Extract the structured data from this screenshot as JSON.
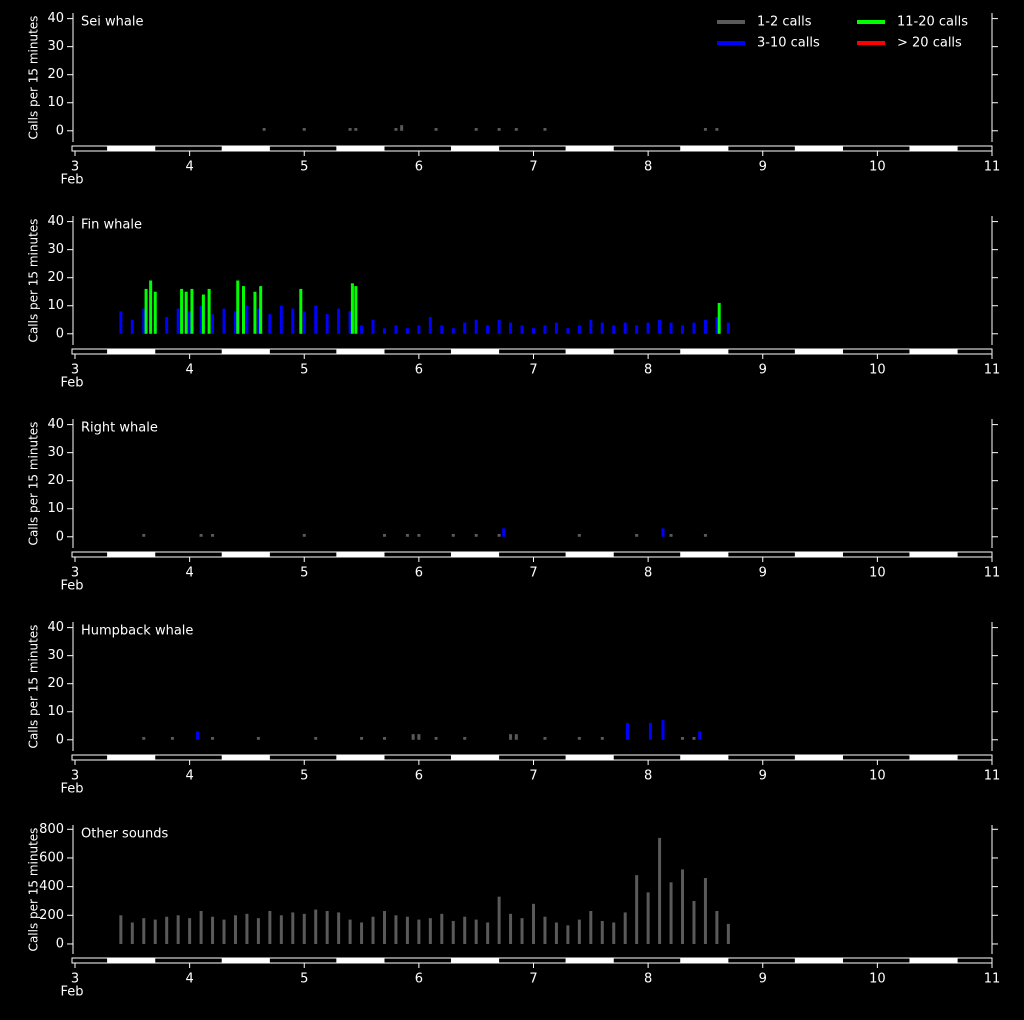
{
  "chart_data": [
    {
      "type": "bar",
      "title": "Sei whale",
      "y_label": "Calls per 15 minutes",
      "x_sublabel": "Feb",
      "xlim": [
        3,
        11
      ],
      "xticks": [
        3,
        4,
        5,
        6,
        7,
        8,
        9,
        10,
        11
      ],
      "ylim": [
        -4,
        42
      ],
      "yticks": [
        0,
        10,
        20,
        30,
        40
      ],
      "legend": "top-right",
      "series": [
        {
          "name": "1-2 calls",
          "color": "#5a5a5a",
          "x": [
            4.65,
            5.0,
            5.4,
            5.45,
            5.8,
            5.85,
            6.15,
            6.5,
            6.7,
            6.85,
            7.1,
            8.5,
            8.6
          ],
          "values": [
            1,
            1,
            1,
            1,
            1,
            2,
            1,
            1,
            1,
            1,
            1,
            1,
            1
          ]
        },
        {
          "name": "3-10 calls",
          "color": "#0000ff",
          "x": [],
          "values": []
        },
        {
          "name": "11-20 calls",
          "color": "#00ff00",
          "x": [],
          "values": []
        },
        {
          "name": "> 20 calls",
          "color": "#ff0000",
          "x": [],
          "values": []
        }
      ]
    },
    {
      "type": "bar",
      "title": "Fin whale",
      "y_label": "Calls per 15 minutes",
      "x_sublabel": "Feb",
      "xlim": [
        3,
        11
      ],
      "xticks": [
        3,
        4,
        5,
        6,
        7,
        8,
        9,
        10,
        11
      ],
      "ylim": [
        -4,
        42
      ],
      "yticks": [
        0,
        10,
        20,
        30,
        40
      ],
      "series": [
        {
          "color": "#0000ff",
          "x": [
            3.4,
            3.5,
            3.6,
            3.7,
            3.8,
            3.9,
            4.0,
            4.1,
            4.2,
            4.3,
            4.4,
            4.5,
            4.6,
            4.7,
            4.8,
            4.9,
            5.0,
            5.1,
            5.2,
            5.3,
            5.4,
            5.5,
            5.6,
            5.7,
            5.8,
            5.9,
            6.0,
            6.1,
            6.2,
            6.3,
            6.4,
            6.5,
            6.6,
            6.7,
            6.8,
            6.9,
            7.0,
            7.1,
            7.2,
            7.3,
            7.4,
            7.5,
            7.6,
            7.7,
            7.8,
            7.9,
            8.0,
            8.1,
            8.2,
            8.3,
            8.4,
            8.5,
            8.6,
            8.7
          ],
          "values": [
            8,
            5,
            9,
            7,
            6,
            9,
            8,
            10,
            7,
            9,
            8,
            10,
            9,
            7,
            10,
            9,
            8,
            10,
            7,
            9,
            8,
            3,
            5,
            2,
            3,
            2,
            3,
            6,
            3,
            2,
            4,
            5,
            3,
            5,
            4,
            3,
            2,
            3,
            4,
            2,
            3,
            5,
            4,
            3,
            4,
            3,
            4,
            5,
            4,
            3,
            4,
            5,
            6,
            4
          ]
        },
        {
          "color": "#00ff00",
          "x": [
            3.62,
            3.66,
            3.7,
            3.93,
            3.97,
            4.02,
            4.12,
            4.17,
            4.42,
            4.47,
            4.57,
            4.62,
            4.97,
            5.42,
            5.45,
            8.62
          ],
          "values": [
            16,
            19,
            15,
            16,
            15,
            16,
            14,
            16,
            19,
            17,
            15,
            17,
            16,
            18,
            17,
            11
          ]
        }
      ]
    },
    {
      "type": "bar",
      "title": "Right whale",
      "y_label": "Calls per 15 minutes",
      "x_sublabel": "Feb",
      "xlim": [
        3,
        11
      ],
      "xticks": [
        3,
        4,
        5,
        6,
        7,
        8,
        9,
        10,
        11
      ],
      "ylim": [
        -4,
        42
      ],
      "yticks": [
        0,
        10,
        20,
        30,
        40
      ],
      "series": [
        {
          "color": "#5a5a5a",
          "x": [
            3.6,
            4.1,
            4.2,
            5.0,
            5.7,
            5.9,
            6.0,
            6.3,
            6.5,
            6.7,
            7.4,
            7.9,
            8.2,
            8.5
          ],
          "values": [
            1,
            1,
            1,
            1,
            1,
            1,
            1,
            1,
            1,
            1,
            1,
            1,
            1,
            1
          ]
        },
        {
          "color": "#0000ff",
          "x": [
            6.74,
            8.13
          ],
          "values": [
            3,
            3
          ]
        }
      ]
    },
    {
      "type": "bar",
      "title": "Humpback whale",
      "y_label": "Calls per 15 minutes",
      "x_sublabel": "Feb",
      "xlim": [
        3,
        11
      ],
      "xticks": [
        3,
        4,
        5,
        6,
        7,
        8,
        9,
        10,
        11
      ],
      "ylim": [
        -4,
        42
      ],
      "yticks": [
        0,
        10,
        20,
        30,
        40
      ],
      "series": [
        {
          "color": "#5a5a5a",
          "x": [
            3.6,
            3.85,
            4.2,
            4.6,
            5.1,
            5.5,
            5.7,
            5.95,
            6.0,
            6.15,
            6.4,
            6.8,
            6.85,
            7.1,
            7.4,
            7.6,
            8.3,
            8.4
          ],
          "values": [
            1,
            1,
            1,
            1,
            1,
            1,
            1,
            2,
            2,
            1,
            1,
            2,
            2,
            1,
            1,
            1,
            1,
            1
          ]
        },
        {
          "color": "#0000ff",
          "x": [
            4.07,
            7.82,
            8.02,
            8.13,
            8.45
          ],
          "values": [
            3,
            6,
            6,
            7,
            3
          ]
        }
      ]
    },
    {
      "type": "bar",
      "title": "Other sounds",
      "y_label": "Calls per 15 minutes",
      "x_sublabel": "Feb",
      "xlim": [
        3,
        11
      ],
      "xticks": [
        3,
        4,
        5,
        6,
        7,
        8,
        9,
        10,
        11
      ],
      "ylim": [
        -70,
        830
      ],
      "yticks": [
        0,
        200,
        400,
        600,
        800
      ],
      "series": [
        {
          "color": "#5a5a5a",
          "x": [
            3.4,
            3.5,
            3.6,
            3.7,
            3.8,
            3.9,
            4.0,
            4.1,
            4.2,
            4.3,
            4.4,
            4.5,
            4.6,
            4.7,
            4.8,
            4.9,
            5.0,
            5.1,
            5.2,
            5.3,
            5.4,
            5.5,
            5.6,
            5.7,
            5.8,
            5.9,
            6.0,
            6.1,
            6.2,
            6.3,
            6.4,
            6.5,
            6.6,
            6.7,
            6.8,
            6.9,
            7.0,
            7.1,
            7.2,
            7.3,
            7.4,
            7.5,
            7.6,
            7.7,
            7.8,
            7.9,
            8.0,
            8.1,
            8.2,
            8.3,
            8.4,
            8.5,
            8.6,
            8.7
          ],
          "values": [
            200,
            150,
            180,
            170,
            190,
            200,
            180,
            230,
            190,
            170,
            200,
            210,
            180,
            230,
            200,
            220,
            210,
            240,
            230,
            220,
            170,
            150,
            190,
            230,
            200,
            190,
            170,
            180,
            210,
            160,
            190,
            170,
            150,
            330,
            210,
            180,
            280,
            190,
            150,
            130,
            170,
            230,
            160,
            150,
            220,
            480,
            360,
            740,
            430,
            520,
            300,
            460,
            230,
            140
          ]
        }
      ]
    }
  ]
}
